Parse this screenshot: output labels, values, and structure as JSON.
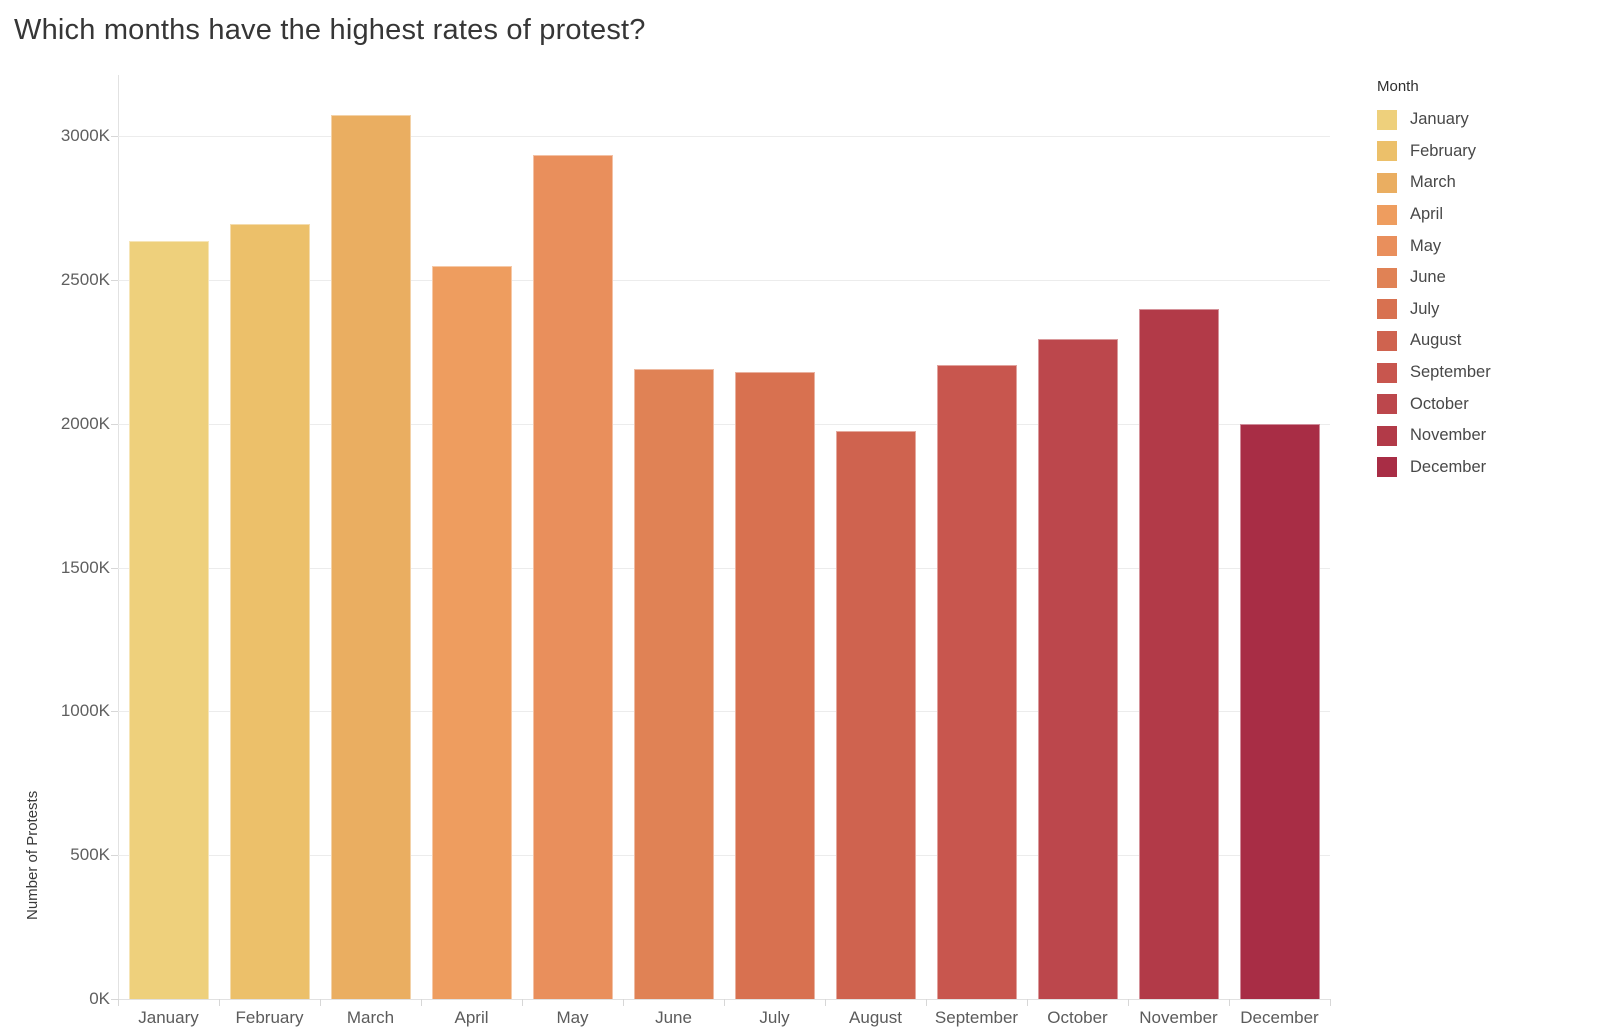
{
  "chart_data": {
    "type": "bar",
    "title": "Which months have the highest rates of protest?",
    "ylabel": "Number of Protests",
    "legend_title": "Month",
    "legend_position": "right",
    "grid": "horizontal",
    "unit": "K",
    "categories": [
      "January",
      "February",
      "March",
      "April",
      "May",
      "June",
      "July",
      "August",
      "September",
      "October",
      "November",
      "December"
    ],
    "values_k": [
      2635,
      2695,
      3075,
      2550,
      2935,
      2190,
      2180,
      1975,
      2205,
      2295,
      2400,
      2000
    ],
    "colors": [
      "#eed07c",
      "#ecc06a",
      "#eaae61",
      "#ee9d5f",
      "#e98f5c",
      "#e08255",
      "#d87150",
      "#cf634f",
      "#c8564e",
      "#bc474c",
      "#b23a48",
      "#a82d45"
    ],
    "yticks": [
      {
        "value": 0,
        "label": "0K"
      },
      {
        "value": 500,
        "label": "500K"
      },
      {
        "value": 1000,
        "label": "1000K"
      },
      {
        "value": 1500,
        "label": "1500K"
      },
      {
        "value": 2000,
        "label": "2000K"
      },
      {
        "value": 2500,
        "label": "2500K"
      },
      {
        "value": 3000,
        "label": "3000K"
      }
    ],
    "ylim": [
      0,
      3213
    ]
  }
}
